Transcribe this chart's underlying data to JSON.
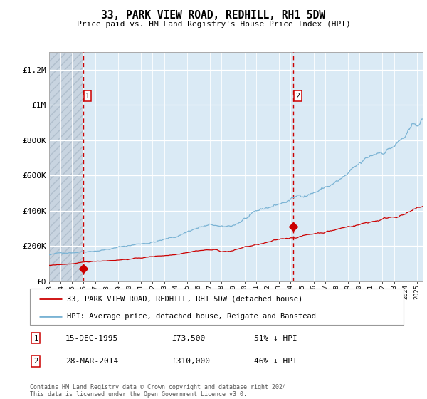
{
  "title": "33, PARK VIEW ROAD, REDHILL, RH1 5DW",
  "subtitle": "Price paid vs. HM Land Registry's House Price Index (HPI)",
  "ylim": [
    0,
    1300000
  ],
  "yticks": [
    0,
    200000,
    400000,
    600000,
    800000,
    1000000,
    1200000
  ],
  "ytick_labels": [
    "£0",
    "£200K",
    "£400K",
    "£600K",
    "£800K",
    "£1M",
    "£1.2M"
  ],
  "sale1_date_x": 1995.96,
  "sale1_price": 73500,
  "sale2_date_x": 2014.24,
  "sale2_price": 310000,
  "vline1_x": 1995.96,
  "vline2_x": 2014.24,
  "xmin": 1993.0,
  "xmax": 2025.5,
  "legend_line1": "33, PARK VIEW ROAD, REDHILL, RH1 5DW (detached house)",
  "legend_line2": "HPI: Average price, detached house, Reigate and Banstead",
  "annotation1_label": "1",
  "annotation1_date": "15-DEC-1995",
  "annotation1_price": "£73,500",
  "annotation1_pct": "51% ↓ HPI",
  "annotation2_label": "2",
  "annotation2_date": "28-MAR-2014",
  "annotation2_price": "£310,000",
  "annotation2_pct": "46% ↓ HPI",
  "footer": "Contains HM Land Registry data © Crown copyright and database right 2024.\nThis data is licensed under the Open Government Licence v3.0.",
  "hpi_color": "#7ab3d4",
  "price_color": "#cc0000",
  "bg_hatch_color": "#c8d4e0",
  "bg_plain_color": "#daeaf5",
  "vline_color": "#cc0000",
  "hatch_end_x": 1995.96,
  "grid_color": "#b8ccd8"
}
